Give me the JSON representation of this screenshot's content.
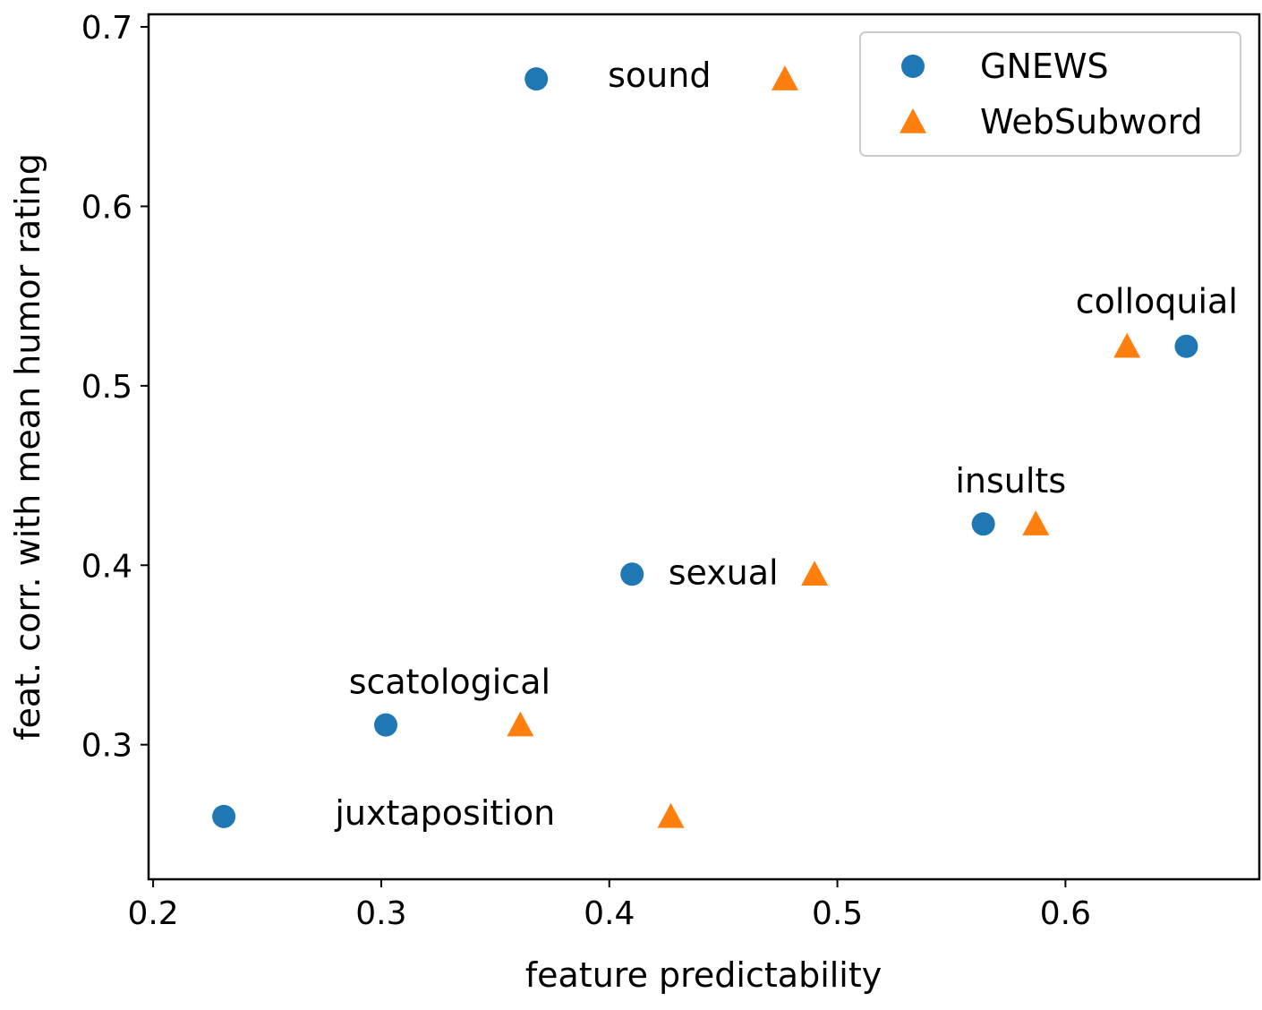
{
  "chart_data": {
    "type": "scatter",
    "title": "",
    "xlabel": "feature predictability",
    "ylabel": "feat. corr. with mean humor rating",
    "xlim": [
      0.198,
      0.685
    ],
    "ylim": [
      0.225,
      0.707
    ],
    "xticks": [
      0.2,
      0.3,
      0.4,
      0.5,
      0.6
    ],
    "xtick_labels": [
      "0.2",
      "0.3",
      "0.4",
      "0.5",
      "0.6"
    ],
    "yticks": [
      0.3,
      0.4,
      0.5,
      0.6,
      0.7
    ],
    "ytick_labels": [
      "0.3",
      "0.4",
      "0.5",
      "0.6",
      "0.7"
    ],
    "grid": false,
    "legend_position": "upper right",
    "series": [
      {
        "name": "GNEWS",
        "marker": "circle",
        "color": "#1f77b4",
        "points": [
          {
            "x": 0.368,
            "y": 0.671
          },
          {
            "x": 0.653,
            "y": 0.522
          },
          {
            "x": 0.564,
            "y": 0.423
          },
          {
            "x": 0.41,
            "y": 0.395
          },
          {
            "x": 0.302,
            "y": 0.311
          },
          {
            "x": 0.231,
            "y": 0.26
          }
        ]
      },
      {
        "name": "WebSubword",
        "marker": "triangle",
        "color": "#ff7f0e",
        "points": [
          {
            "x": 0.477,
            "y": 0.671
          },
          {
            "x": 0.627,
            "y": 0.522
          },
          {
            "x": 0.587,
            "y": 0.423
          },
          {
            "x": 0.49,
            "y": 0.395
          },
          {
            "x": 0.361,
            "y": 0.311
          },
          {
            "x": 0.427,
            "y": 0.26
          }
        ]
      }
    ],
    "annotations": [
      {
        "text": "sound",
        "x": 0.422,
        "y": 0.673,
        "anchor": "middle"
      },
      {
        "text": "colloquial",
        "x": 0.64,
        "y": 0.547,
        "anchor": "middle"
      },
      {
        "text": "insults",
        "x": 0.576,
        "y": 0.447,
        "anchor": "middle"
      },
      {
        "text": "sexual",
        "x": 0.45,
        "y": 0.396,
        "anchor": "middle"
      },
      {
        "text": "scatological",
        "x": 0.33,
        "y": 0.335,
        "anchor": "middle"
      },
      {
        "text": "juxtaposition",
        "x": 0.328,
        "y": 0.262,
        "anchor": "middle"
      }
    ]
  }
}
